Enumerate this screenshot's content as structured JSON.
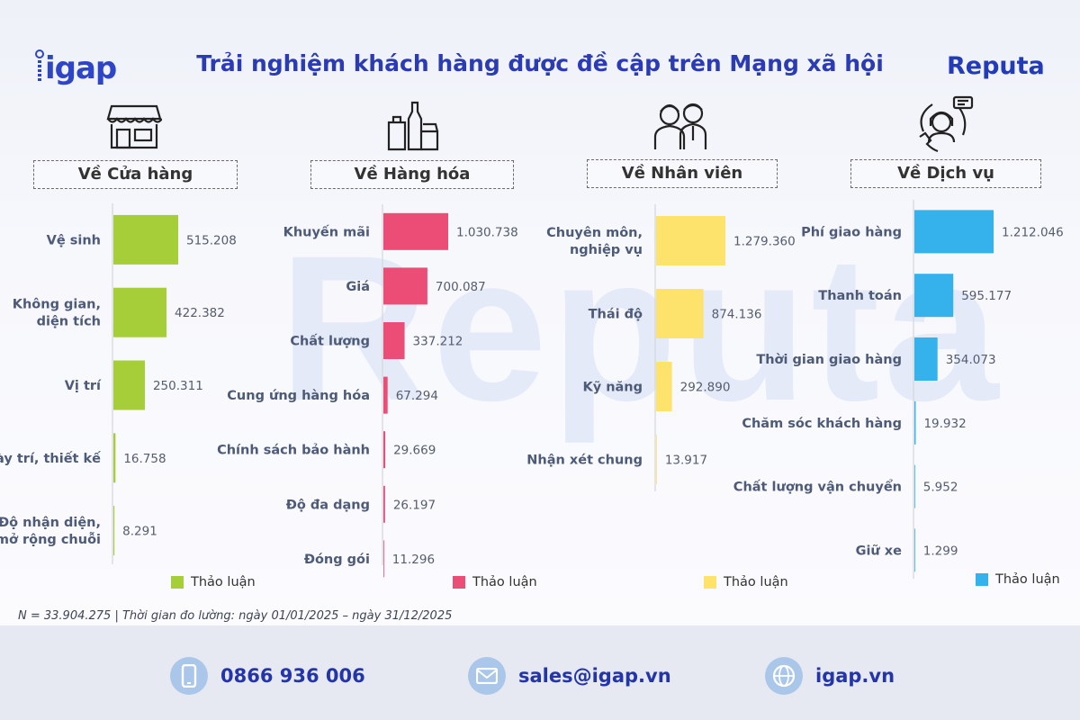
{
  "header": {
    "title": "Trải nghiệm khách hàng được đề cập trên Mạng xã hội",
    "logo_left": "igap",
    "logo_right": "Reputa",
    "watermark": "Reputa"
  },
  "colors": {
    "green": "#a6ce39",
    "pink": "#ec4d77",
    "yellow": "#fde36c",
    "blue": "#35b1ec"
  },
  "panels": [
    {
      "title": "Về Cửa hàng",
      "icon": "storefront-icon",
      "legend": "Thảo luận"
    },
    {
      "title": "Về Hàng hóa",
      "icon": "groceries-icon",
      "legend": "Thảo luận"
    },
    {
      "title": "Về Nhân viên",
      "icon": "staff-icon",
      "legend": "Thảo luận"
    },
    {
      "title": "Về Dịch vụ",
      "icon": "customer-support-icon",
      "legend": "Thảo luận"
    }
  ],
  "chart_data": [
    {
      "type": "bar",
      "orientation": "horizontal",
      "title": "Về Cửa hàng",
      "categories": [
        "Vệ sinh",
        "Không gian,\ndiện tích",
        "Vị trí",
        "Bày trí, thiết kế",
        "Độ nhận diện,\nmở rộng chuỗi"
      ],
      "value_labels": [
        "515.208",
        "422.382",
        "250.311",
        "16.758",
        "8.291"
      ],
      "series": [
        {
          "name": "Thảo luận",
          "values": [
            515208,
            422382,
            250311,
            16758,
            8291
          ],
          "color": "#a6ce39"
        }
      ]
    },
    {
      "type": "bar",
      "orientation": "horizontal",
      "title": "Về Hàng hóa",
      "categories": [
        "Khuyến mãi",
        "Giá",
        "Chất lượng",
        "Cung ứng hàng hóa",
        "Chính sách bảo hành",
        "Độ đa dạng",
        "Đóng gói"
      ],
      "value_labels": [
        "1.030.738",
        "700.087",
        "337.212",
        "67.294",
        "29.669",
        "26.197",
        "11.296"
      ],
      "series": [
        {
          "name": "Thảo luận",
          "values": [
            1030738,
            700087,
            337212,
            67294,
            29669,
            26197,
            11296
          ],
          "color": "#ec4d77"
        }
      ]
    },
    {
      "type": "bar",
      "orientation": "horizontal",
      "title": "Về Nhân viên",
      "categories": [
        "Chuyên môn,\nnghiệp vụ",
        "Thái độ",
        "Kỹ năng",
        "Nhận xét chung"
      ],
      "value_labels": [
        "1.279.360",
        "874.136",
        "292.890",
        "13.917"
      ],
      "series": [
        {
          "name": "Thảo luận",
          "values": [
            1279360,
            874136,
            292890,
            13917
          ],
          "color": "#fde36c"
        }
      ]
    },
    {
      "type": "bar",
      "orientation": "horizontal",
      "title": "Về Dịch vụ",
      "categories": [
        "Phí giao hàng",
        "Thanh toán",
        "Thời gian giao hàng",
        "Chăm sóc khách hàng",
        "Chất lượng vận chuyển",
        "Giữ xe"
      ],
      "value_labels": [
        "1.212.046",
        "595.177",
        "354.073",
        "19.932",
        "5.952",
        "1.299"
      ],
      "series": [
        {
          "name": "Thảo luận",
          "values": [
            1212046,
            595177,
            354073,
            19932,
            5952,
            1299
          ],
          "color": "#35b1ec"
        }
      ]
    }
  ],
  "footnote": "N = 33.904.275 | Thời gian đo lường: ngày 01/01/2025 – ngày 31/12/2025",
  "contacts": {
    "phone": "0866 936 006",
    "email": "sales@igap.vn",
    "website": "igap.vn"
  }
}
